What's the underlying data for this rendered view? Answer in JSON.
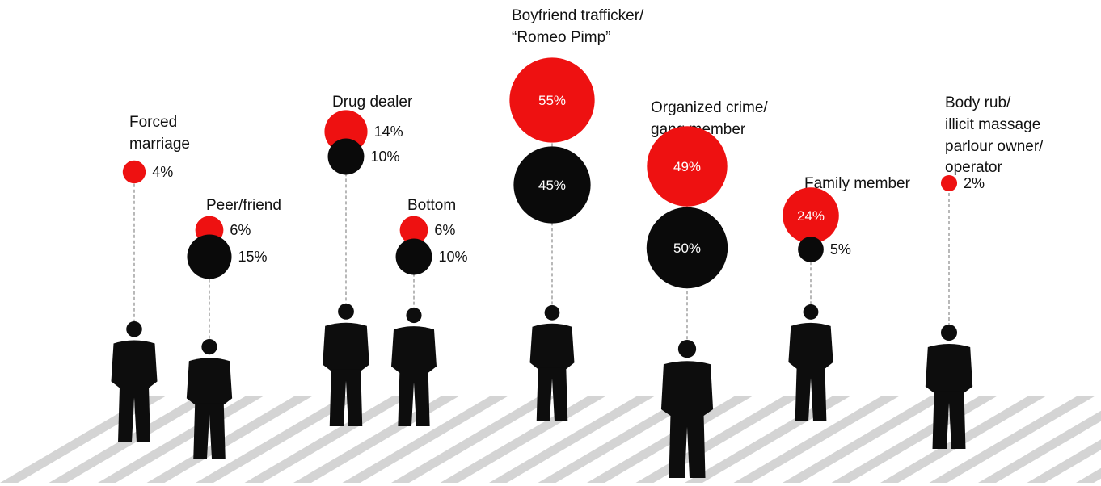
{
  "colors": {
    "red_series": "#ee1111",
    "black_series": "#0a0a0a",
    "crosswalk": "#d4d4d4",
    "figure": "#0d0d0d"
  },
  "chart_data": {
    "type": "bubble",
    "categories": [
      "Forced marriage",
      "Peer/friend",
      "Drug dealer",
      "Bottom",
      "Boyfriend trafficker/ “Romeo Pimp”",
      "Organized crime/ gang member",
      "Family member",
      "Body rub/ illicit massage parlour owner/ operator"
    ],
    "series": [
      {
        "color": "#ee1111",
        "values": [
          4,
          6,
          14,
          6,
          55,
          49,
          24,
          2
        ]
      },
      {
        "color": "#0a0a0a",
        "values": [
          null,
          15,
          10,
          10,
          45,
          50,
          5,
          null
        ]
      }
    ]
  },
  "groups": [
    {
      "label_lines": [
        "Forced",
        "marriage"
      ],
      "red": "4%",
      "black": null
    },
    {
      "label_lines": [
        "Peer/friend"
      ],
      "red": "6%",
      "black": "15%"
    },
    {
      "label_lines": [
        "Drug dealer"
      ],
      "red": "14%",
      "black": "10%"
    },
    {
      "label_lines": [
        "Bottom"
      ],
      "red": "6%",
      "black": "10%"
    },
    {
      "label_lines": [
        "Boyfriend trafficker/",
        "“Romeo Pimp”"
      ],
      "red": "55%",
      "black": "45%"
    },
    {
      "label_lines": [
        "Organized crime/",
        "gang member"
      ],
      "red": "49%",
      "black": "50%"
    },
    {
      "label_lines": [
        "Family member"
      ],
      "red": "24%",
      "black": "5%"
    },
    {
      "label_lines": [
        "Body rub/",
        "illicit massage",
        "parlour owner/",
        "operator"
      ],
      "red": "2%",
      "black": null
    }
  ]
}
